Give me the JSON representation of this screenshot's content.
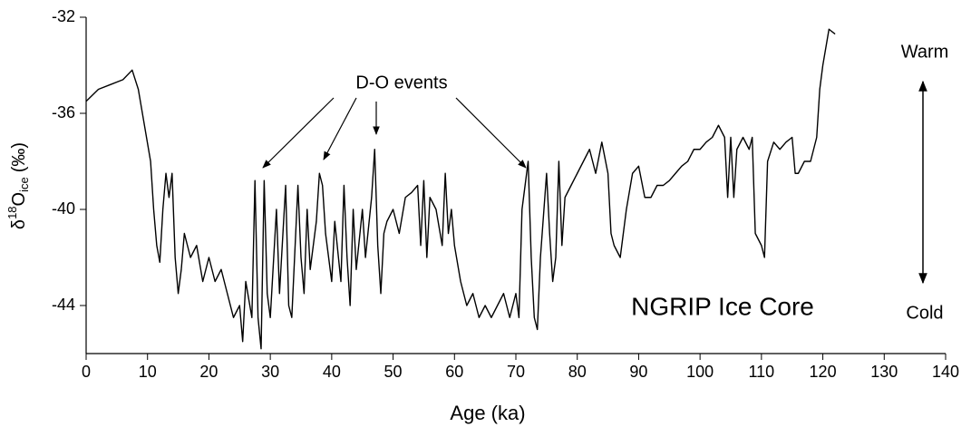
{
  "chart_data": {
    "type": "line",
    "x_label": "Age (ka)",
    "y_label": {
      "base": "δ",
      "sup": "18",
      "main": "O",
      "sub": "ice",
      "unit": "(‰)"
    },
    "annotations": {
      "events": "D-O events",
      "core": "NGRIP Ice Core",
      "warm": "Warm",
      "cold": "Cold"
    },
    "xlim": [
      0,
      140
    ],
    "xticks": [
      0,
      10,
      20,
      30,
      40,
      50,
      60,
      70,
      80,
      90,
      100,
      110,
      120,
      130,
      140
    ],
    "ylim": [
      -46,
      -32
    ],
    "yticks": [
      -32,
      -36,
      -40,
      -44
    ],
    "series": [
      {
        "color": "#000000",
        "x": [
          0,
          2,
          4,
          6,
          7.5,
          8.5,
          9.5,
          10.5,
          11,
          11.5,
          12,
          12.5,
          13,
          13.5,
          14,
          14.5,
          15,
          15.5,
          16,
          17,
          18,
          19,
          20,
          21,
          22,
          23,
          24,
          25,
          25.5,
          26,
          27,
          27.5,
          28,
          28.5,
          29,
          29.5,
          30,
          31,
          31.5,
          32.5,
          33,
          33.5,
          34.5,
          35,
          35.5,
          36,
          36.5,
          37.5,
          38,
          38.5,
          39,
          40,
          40.5,
          41.5,
          42,
          42.5,
          43,
          43.5,
          44,
          45,
          45.5,
          46.5,
          47,
          47.5,
          48,
          48.5,
          49,
          50,
          51,
          52,
          53,
          54,
          54.5,
          55,
          55.5,
          56,
          57,
          58,
          58.5,
          59,
          59.5,
          60,
          61,
          62,
          63,
          64,
          65,
          66,
          67,
          68,
          69,
          70,
          70.5,
          71,
          72,
          72.5,
          73,
          73.5,
          74,
          75,
          75.5,
          76,
          76.5,
          77,
          77.5,
          78,
          79,
          80,
          81,
          82,
          83,
          84,
          85,
          85.5,
          86,
          87,
          87.5,
          88,
          89,
          90,
          91,
          92,
          93,
          94,
          95,
          96,
          97,
          98,
          99,
          100,
          101,
          102,
          103,
          104,
          104.5,
          105,
          105.5,
          106,
          107,
          108,
          108.5,
          109,
          110,
          110.5,
          111,
          112,
          113,
          114,
          115,
          115.5,
          116,
          117,
          118,
          118.5,
          119,
          119.5,
          120,
          121,
          122
        ],
        "values": [
          -35.5,
          -35,
          -34.8,
          -34.6,
          -34.2,
          -35,
          -36.5,
          -38,
          -40,
          -41.5,
          -42.2,
          -40,
          -38.5,
          -39.5,
          -38.5,
          -42,
          -43.5,
          -42.5,
          -41,
          -42,
          -41.5,
          -43,
          -42,
          -43,
          -42.5,
          -43.5,
          -44.5,
          -44,
          -45.5,
          -43,
          -44.5,
          -38.8,
          -44.5,
          -45.8,
          -38.8,
          -43.5,
          -44.5,
          -40,
          -43.5,
          -39,
          -44,
          -44.5,
          -39,
          -42,
          -43.5,
          -40,
          -42.5,
          -40.5,
          -38.5,
          -39,
          -41,
          -43,
          -40.5,
          -43,
          -39,
          -42,
          -44,
          -40,
          -42.5,
          -40,
          -42,
          -39.5,
          -37.5,
          -41.5,
          -43.5,
          -41,
          -40.5,
          -40,
          -41,
          -39.5,
          -39.3,
          -39,
          -41.5,
          -38.8,
          -42,
          -39.5,
          -40,
          -41.5,
          -38.5,
          -41,
          -40,
          -41.5,
          -43,
          -44,
          -43.5,
          -44.5,
          -44,
          -44.5,
          -44,
          -43.5,
          -44.5,
          -43.5,
          -44.5,
          -40,
          -38,
          -42,
          -44.5,
          -45,
          -42,
          -38.5,
          -41,
          -43,
          -42,
          -38,
          -41.5,
          -39.5,
          -39,
          -38.5,
          -38,
          -37.5,
          -38.5,
          -37.2,
          -38.5,
          -41,
          -41.5,
          -42,
          -41,
          -40,
          -38.5,
          -38.2,
          -39.5,
          -39.5,
          -39,
          -39,
          -38.8,
          -38.5,
          -38.2,
          -38,
          -37.5,
          -37.5,
          -37.2,
          -37,
          -36.5,
          -37,
          -39.5,
          -37,
          -39.5,
          -37.5,
          -37,
          -37.5,
          -37,
          -41,
          -41.5,
          -42,
          -38,
          -37.2,
          -37.5,
          -37.2,
          -37,
          -38.5,
          -38.5,
          -38,
          -38,
          -37.5,
          -37,
          -35,
          -34,
          -32.5,
          -32.7
        ]
      }
    ]
  }
}
